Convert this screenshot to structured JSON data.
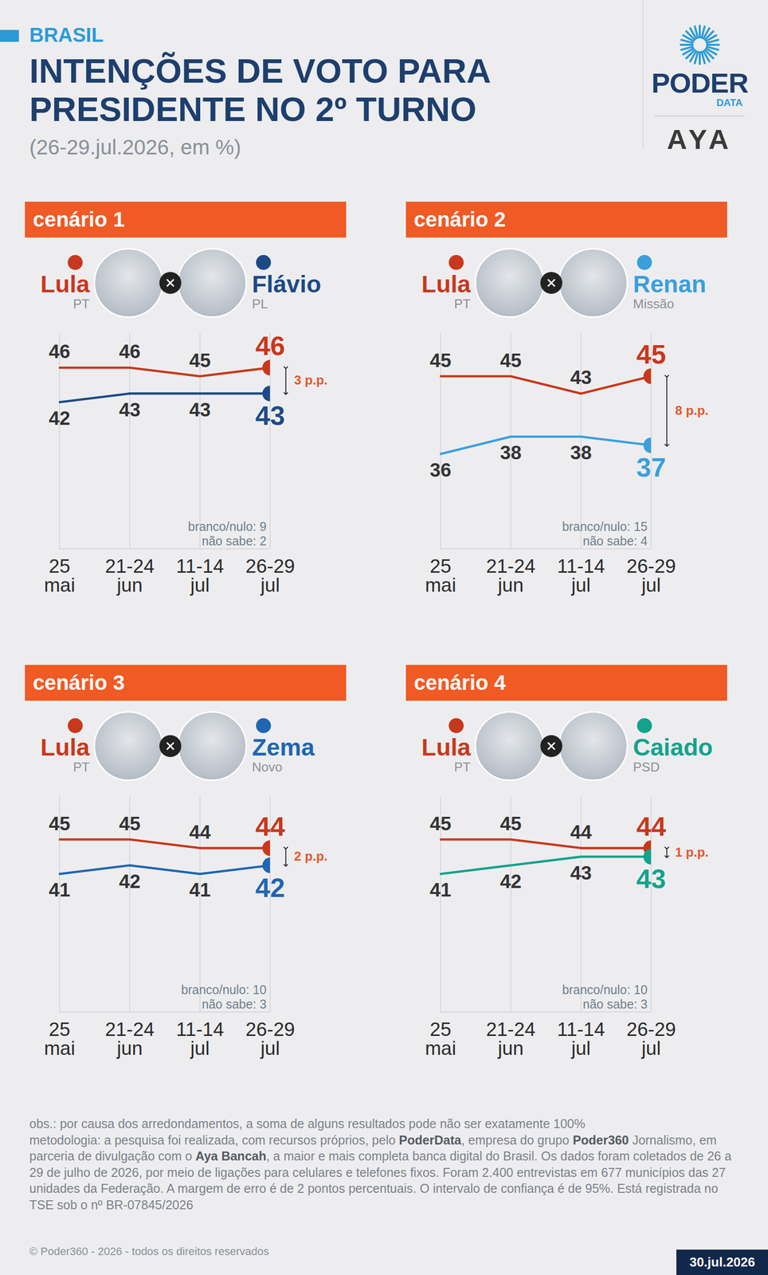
{
  "header": {
    "section": "BRASIL",
    "title": "INTENÇÕES DE VOTO PARA PRESIDENTE NO 2º TURNO",
    "subtitle": "(26-29.jul.2026, em %)",
    "logo": {
      "brand": "PODER",
      "brand_sub": "DATA",
      "partner": "AYA"
    }
  },
  "chart_data": [
    {
      "type": "line",
      "title": "cenário 1",
      "categories": [
        "25 mai",
        "21-24 jun",
        "11-14 jul",
        "26-29 jul"
      ],
      "series": [
        {
          "name": "Lula",
          "party": "PT",
          "color": "#c8381c",
          "values": [
            46,
            46,
            45,
            46
          ]
        },
        {
          "name": "Flávio",
          "party": "PL",
          "color": "#1c4a86",
          "values": [
            42,
            43,
            43,
            43
          ]
        }
      ],
      "ylim": [
        25,
        50
      ],
      "tick_labels": "x",
      "grid": true,
      "data_labels": true,
      "annotation": "3 p.p.",
      "notes": [
        "branco/nulo: 9",
        "não sabe: 2"
      ]
    },
    {
      "type": "line",
      "title": "cenário 2",
      "categories": [
        "25 mai",
        "21-24 jun",
        "11-14 jul",
        "26-29 jul"
      ],
      "series": [
        {
          "name": "Lula",
          "party": "PT",
          "color": "#c8381c",
          "values": [
            45,
            45,
            43,
            45
          ]
        },
        {
          "name": "Renan",
          "party": "Missão",
          "color": "#3a9fdc",
          "values": [
            36,
            38,
            38,
            37
          ]
        }
      ],
      "ylim": [
        25,
        50
      ],
      "tick_labels": "x",
      "grid": true,
      "data_labels": true,
      "annotation": "8 p.p.",
      "notes": [
        "branco/nulo: 15",
        "não sabe: 4"
      ]
    },
    {
      "type": "line",
      "title": "cenário 3",
      "categories": [
        "25 mai",
        "21-24 jun",
        "11-14 jul",
        "26-29 jul"
      ],
      "series": [
        {
          "name": "Lula",
          "party": "PT",
          "color": "#c8381c",
          "values": [
            45,
            45,
            44,
            44
          ]
        },
        {
          "name": "Zema",
          "party": "Novo",
          "color": "#1f66b3",
          "values": [
            41,
            42,
            41,
            42
          ]
        }
      ],
      "ylim": [
        25,
        50
      ],
      "tick_labels": "x",
      "grid": true,
      "data_labels": true,
      "annotation": "2 p.p.",
      "notes": [
        "branco/nulo: 10",
        "não sabe: 3"
      ]
    },
    {
      "type": "line",
      "title": "cenário 4",
      "categories": [
        "25 mai",
        "21-24 jun",
        "11-14 jul",
        "26-29 jul"
      ],
      "series": [
        {
          "name": "Lula",
          "party": "PT",
          "color": "#c8381c",
          "values": [
            45,
            45,
            44,
            44
          ]
        },
        {
          "name": "Caiado",
          "party": "PSD",
          "color": "#12a38c",
          "values": [
            41,
            42,
            43,
            43
          ]
        }
      ],
      "ylim": [
        25,
        50
      ],
      "tick_labels": "x",
      "grid": true,
      "data_labels": true,
      "annotation": "1 p.p.",
      "notes": [
        "branco/nulo: 10",
        "não sabe: 3"
      ]
    }
  ],
  "footer": {
    "note": "obs.: por causa dos arredondamentos, a soma de alguns resultados pode não ser exatamente 100%",
    "methodology": [
      {
        "text": "metodologia: a pesquisa foi realizada, com recursos próprios, pelo ",
        "bold": false
      },
      {
        "text": "PoderData",
        "bold": true
      },
      {
        "text": ", empresa do grupo ",
        "bold": false
      },
      {
        "text": "Poder360",
        "bold": true
      },
      {
        "text": " Jornalismo, em parceria de divulgação com o ",
        "bold": false
      },
      {
        "text": "Aya Bancah",
        "bold": true
      },
      {
        "text": ", a maior e mais completa banca digital do Brasil. Os dados foram coletados de 26 a 29 de julho de 2026, por meio de ligações para celulares e telefones fixos. Foram 2.400 entrevistas em 677 municípios das 27 unidades da Federação. A margem de erro é de 2 pontos percentuais. O intervalo de confiança é de 95%. Está registrada no TSE sob o nº BR-07845/2026",
        "bold": false
      }
    ],
    "copyright": "© Poder360 - 2026 - todos os direitos reservados",
    "date": "30.jul.2026"
  }
}
